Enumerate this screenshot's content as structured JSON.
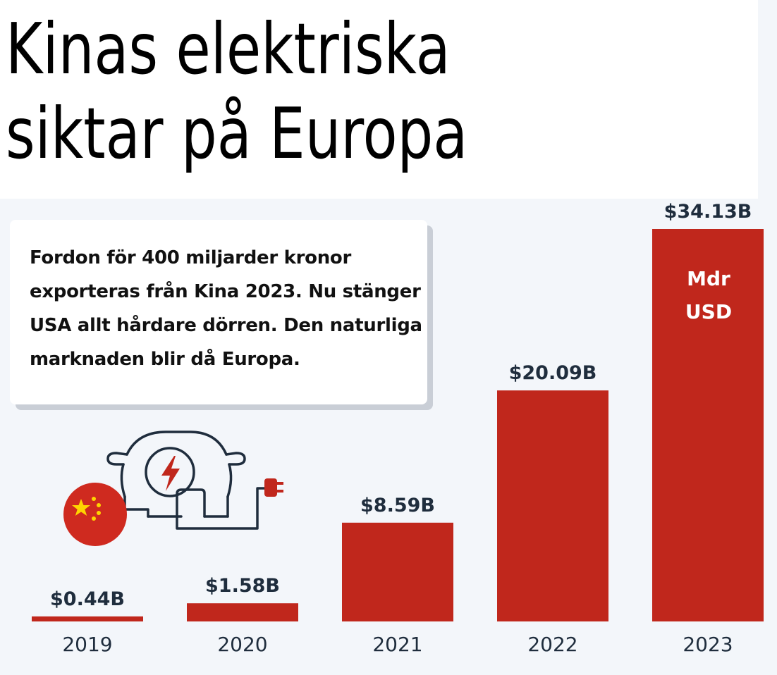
{
  "title": {
    "line1": "Kinas elektriska",
    "line2": "siktar på Europa"
  },
  "note": "Fordon för 400 miljarder kronor exporteras från Kina 2023. Nu stänger USA allt hårdare dörren. Den naturliga marknaden blir då Europa.",
  "unit": {
    "line1": "Mdr",
    "line2": "USD"
  },
  "colors": {
    "bar": "#c0271c",
    "text": "#1f2d3d",
    "background": "#f3f6fa"
  },
  "chart_data": {
    "type": "bar",
    "categories": [
      "2019",
      "2020",
      "2021",
      "2022",
      "2023"
    ],
    "values": [
      0.44,
      1.58,
      8.59,
      20.09,
      34.13
    ],
    "value_labels": [
      "$0.44B",
      "$1.58B",
      "$8.59B",
      "$20.09B",
      "$34.13B"
    ],
    "title": "Kinas elektriska siktar på Europa",
    "xlabel": "",
    "ylabel": "",
    "ylim": [
      0,
      34.13
    ],
    "grid": false
  }
}
